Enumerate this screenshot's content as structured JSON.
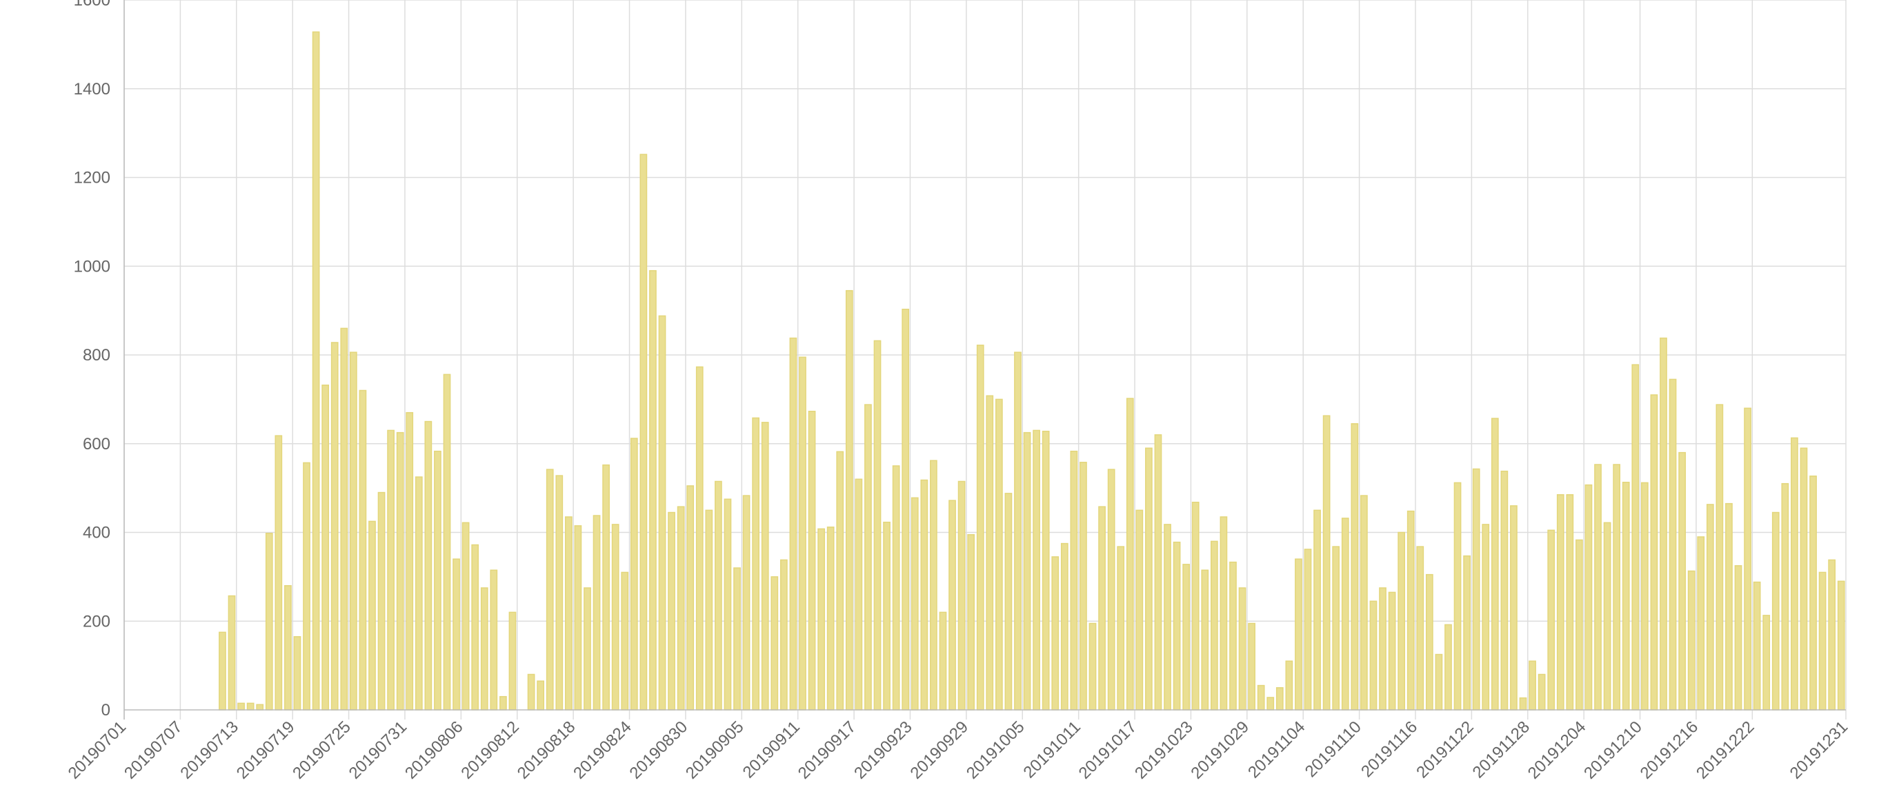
{
  "chart_data": {
    "type": "bar",
    "title": "",
    "xlabel": "",
    "ylabel": "",
    "ylim": [
      0,
      1600
    ],
    "yticks": [
      0,
      200,
      400,
      600,
      800,
      1000,
      1200,
      1400,
      1600
    ],
    "xtick_labels": [
      "20190701",
      "20190707",
      "20190713",
      "20190719",
      "20190725",
      "20190731",
      "20190806",
      "20190812",
      "20190818",
      "20190824",
      "20190830",
      "20190905",
      "20190911",
      "20190917",
      "20190923",
      "20190929",
      "20191005",
      "20191011",
      "20191017",
      "20191023",
      "20191029",
      "20191104",
      "20191110",
      "20191116",
      "20191122",
      "20191128",
      "20191204",
      "20191210",
      "20191216",
      "20191222",
      "20191231"
    ],
    "grid": true,
    "legend": "none",
    "colors": {
      "bar_fill": "#eadf92",
      "bar_border": "#e3d67b",
      "grid": "#dddddd",
      "tick_text": "#666666"
    },
    "start_date": "2019-07-01",
    "values": [
      0,
      0,
      0,
      0,
      0,
      0,
      0,
      0,
      0,
      0,
      175,
      257,
      15,
      15,
      12,
      398,
      618,
      280,
      165,
      557,
      1528,
      732,
      828,
      860,
      806,
      720,
      425,
      490,
      630,
      625,
      670,
      525,
      650,
      583,
      756,
      340,
      422,
      372,
      275,
      315,
      30,
      220,
      0,
      80,
      65,
      542,
      528,
      435,
      415,
      275,
      438,
      552,
      418,
      310,
      612,
      1252,
      990,
      888,
      445,
      458,
      505,
      773,
      450,
      515,
      475,
      320,
      483,
      658,
      648,
      300,
      338,
      838,
      795,
      673,
      408,
      412,
      582,
      945,
      520,
      688,
      832,
      423,
      550,
      903,
      478,
      518,
      562,
      220,
      472,
      515,
      395,
      822,
      708,
      700,
      488,
      806,
      625,
      630,
      628,
      345,
      375,
      583,
      558,
      195,
      458,
      542,
      368,
      702,
      450,
      590,
      620,
      418,
      378,
      328,
      468,
      315,
      380,
      435,
      333,
      275,
      195,
      55,
      28,
      50,
      110,
      340,
      362,
      450,
      663,
      368,
      432,
      645,
      483,
      245,
      275,
      265,
      400,
      448,
      368,
      305,
      125,
      192,
      512,
      347,
      543,
      418,
      657,
      538,
      460,
      27,
      110,
      80,
      405,
      485,
      485,
      383,
      507,
      553,
      422,
      553,
      513,
      778,
      512,
      710,
      838,
      745,
      580,
      313,
      390,
      463,
      688,
      465,
      325,
      680,
      288,
      213,
      445,
      510,
      613,
      590,
      527,
      310,
      338,
      290
    ]
  }
}
